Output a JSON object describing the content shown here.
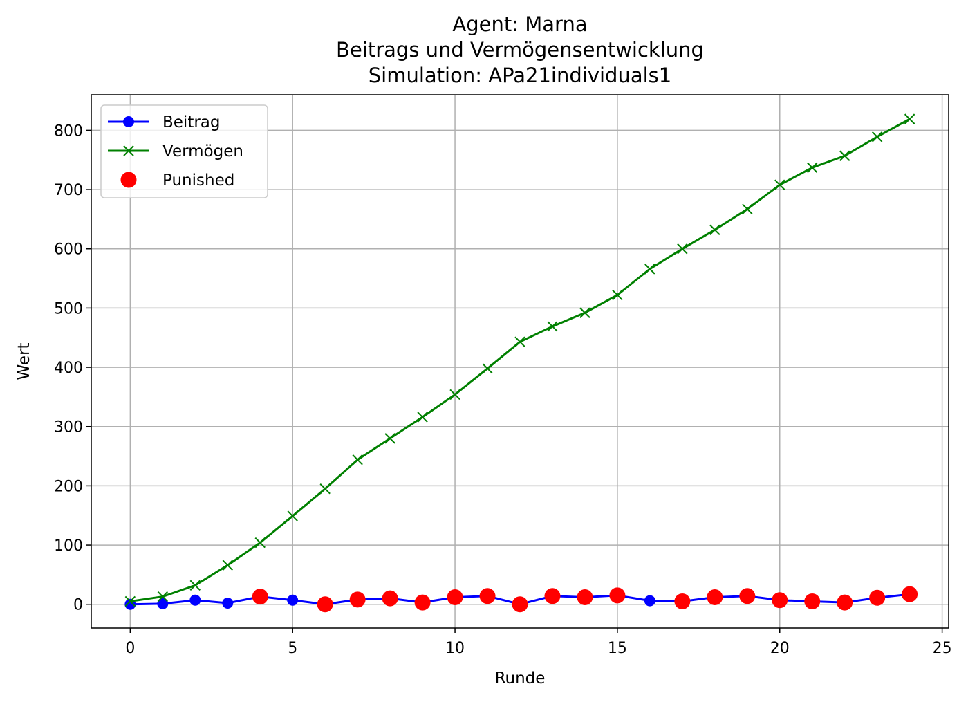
{
  "chart_data": {
    "type": "line",
    "title_lines": [
      "Agent: Marna",
      "Beitrags und Vermögensentwicklung",
      "Simulation: APa21individuals1"
    ],
    "xlabel": "Runde",
    "ylabel": "Wert",
    "xlim": [
      -1.2,
      25.2
    ],
    "ylim": [
      -40,
      860
    ],
    "xticks": [
      0,
      5,
      10,
      15,
      20,
      25
    ],
    "yticks": [
      0,
      100,
      200,
      300,
      400,
      500,
      600,
      700,
      800
    ],
    "grid": true,
    "legend_position": "top-left",
    "x": [
      0,
      1,
      2,
      3,
      4,
      5,
      6,
      7,
      8,
      9,
      10,
      11,
      12,
      13,
      14,
      15,
      16,
      17,
      18,
      19,
      20,
      21,
      22,
      23,
      24
    ],
    "series": [
      {
        "name": "Beitrag",
        "color": "#0000ff",
        "marker": "circle",
        "values": [
          0,
          1,
          7,
          2,
          13,
          7,
          0,
          8,
          10,
          3,
          12,
          14,
          0,
          14,
          12,
          15,
          6,
          5,
          12,
          14,
          7,
          5,
          3,
          11,
          17
        ]
      },
      {
        "name": "Vermögen",
        "color": "#008000",
        "marker": "x",
        "values": [
          5,
          13,
          32,
          66,
          104,
          149,
          195,
          244,
          280,
          316,
          354,
          398,
          443,
          469,
          492,
          522,
          566,
          600,
          632,
          667,
          708,
          737,
          757,
          789,
          819
        ]
      }
    ],
    "punished": {
      "name": "Punished",
      "color": "#ff0000",
      "x": [
        4,
        6,
        7,
        8,
        9,
        10,
        11,
        12,
        13,
        14,
        15,
        17,
        18,
        19,
        20,
        21,
        22,
        23,
        24
      ],
      "y": [
        13,
        0,
        8,
        10,
        3,
        12,
        14,
        0,
        14,
        12,
        15,
        5,
        12,
        14,
        7,
        5,
        3,
        11,
        17
      ]
    }
  }
}
